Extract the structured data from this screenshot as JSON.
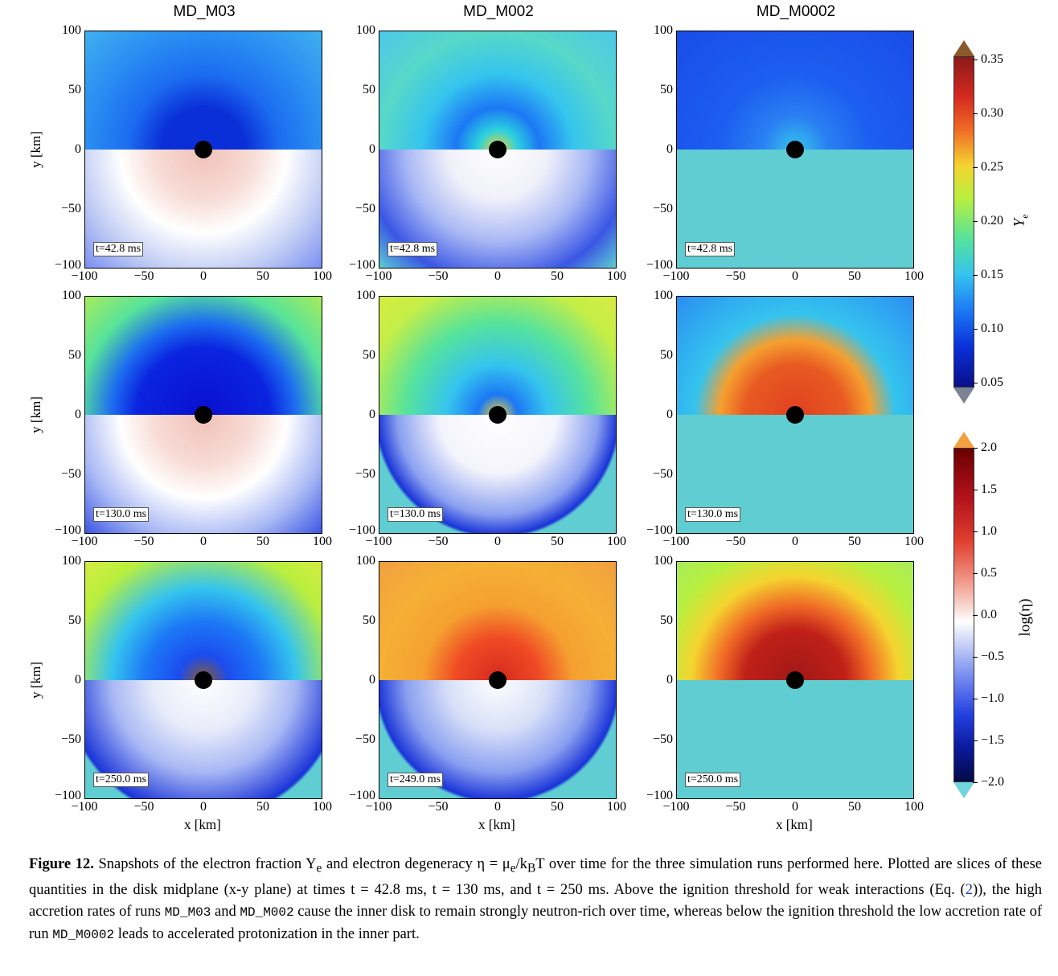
{
  "columns": [
    "MD_M03",
    "MD_M002",
    "MD_M0002"
  ],
  "time_labels": [
    [
      "t=42.8 ms",
      "t=42.8 ms",
      "t=42.8 ms"
    ],
    [
      "t=130.0 ms",
      "t=130.0 ms",
      "t=130.0 ms"
    ],
    [
      "t=250.0 ms",
      "t=249.0 ms",
      "t=250.0 ms"
    ]
  ],
  "axes": {
    "ylabel": "y [km]",
    "xlabel": "x [km]",
    "yticks": [
      "100",
      "50",
      "0",
      "−50",
      "−100"
    ],
    "xticks": [
      "−100",
      "−50",
      "0",
      "50",
      "100"
    ]
  },
  "colorbar_ye": {
    "label": "Y",
    "label_sub": "e",
    "ticks": [
      "0.35",
      "0.30",
      "0.25",
      "0.20",
      "0.15",
      "0.10",
      "0.05"
    ]
  },
  "colorbar_eta": {
    "label": "log(η)",
    "ticks": [
      "2.0",
      "1.5",
      "1.0",
      "0.5",
      "0.0",
      "−0.5",
      "−1.0",
      "−1.5",
      "−2.0"
    ]
  },
  "caption": {
    "label": "Figure 12.",
    "part1": " Snapshots of the electron fraction Y",
    "part1_sub": "e",
    "part2": " and electron degeneracy η = μ",
    "part2_sub": "e",
    "part3": "/k",
    "part3_sub": "B",
    "part4": "T over time for the three simulation runs performed here. Plotted are slices of these quantities in the disk midplane (x-y plane) at times t = 42.8 ms, t = 130 ms, and t = 250 ms. Above the ignition threshold for weak interactions (Eq. (",
    "eq_ref": "2",
    "part5": ")), the high accretion rates of runs ",
    "run1": "MD_M03",
    "part6": " and ",
    "run2": "MD_M002",
    "part7": " cause the inner disk to remain strongly neutron-rich over time, whereas below the ignition threshold the low accretion rate of run ",
    "run3": "MD_M0002",
    "part8": " leads to accelerated protonization in the inner part."
  }
}
